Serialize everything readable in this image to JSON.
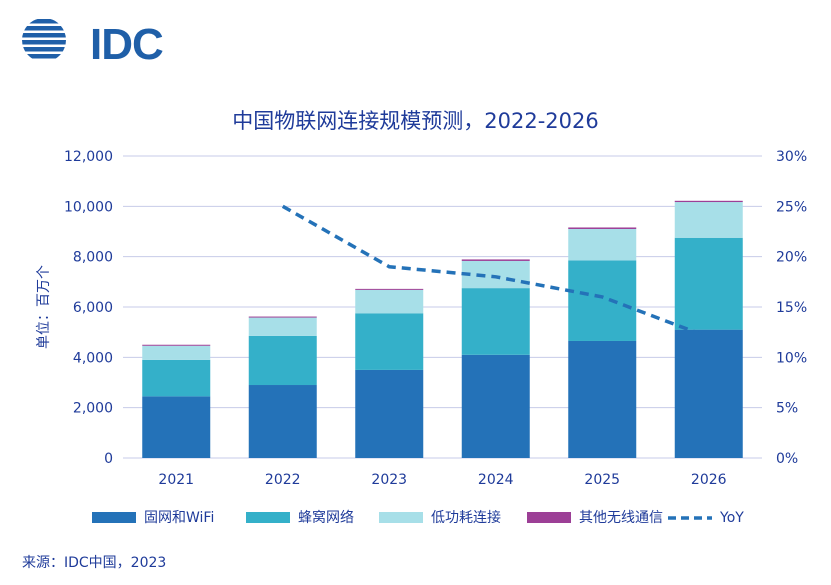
{
  "logo": {
    "text": "IDC"
  },
  "source": "来源：IDC中国，2023",
  "colors": {
    "fixed": "#2472b8",
    "cellular": "#34b0c9",
    "lowpower": "#a7dfe8",
    "other": "#9c3f96",
    "yoy": "#2472b8",
    "grid": "#c7cbe8",
    "text": "#1f3b9a"
  },
  "chart_data": {
    "type": "bar",
    "stacked": true,
    "title": "中国物联网连接规模预测，2022-2026",
    "ylabel": "单位：百万个",
    "ylim": [
      0,
      12000
    ],
    "y2lim": [
      0,
      30
    ],
    "grid": true,
    "legend_position": "bottom",
    "categories": [
      "2021",
      "2022",
      "2023",
      "2024",
      "2025",
      "2026"
    ],
    "yticks": [
      "12,000",
      "10,000",
      "8,000",
      "6,000",
      "4,000",
      "2,000",
      "0"
    ],
    "y2ticks": [
      "30%",
      "25%",
      "20%",
      "15%",
      "10%",
      "5%",
      "0%"
    ],
    "series": [
      {
        "name": "固网和WiFi",
        "values": [
          2450,
          2900,
          3500,
          4100,
          4650,
          5100
        ]
      },
      {
        "name": "蜂窝网络",
        "values": [
          1450,
          1950,
          2250,
          2650,
          3200,
          3650
        ]
      },
      {
        "name": "低功耗连接",
        "values": [
          560,
          730,
          930,
          1080,
          1250,
          1420
        ]
      },
      {
        "name": "其他无线通信",
        "values": [
          40,
          40,
          40,
          60,
          60,
          50
        ]
      }
    ],
    "line": {
      "name": "YoY",
      "axis": "secondary",
      "values": [
        null,
        25,
        19,
        18,
        16,
        12
      ]
    }
  }
}
